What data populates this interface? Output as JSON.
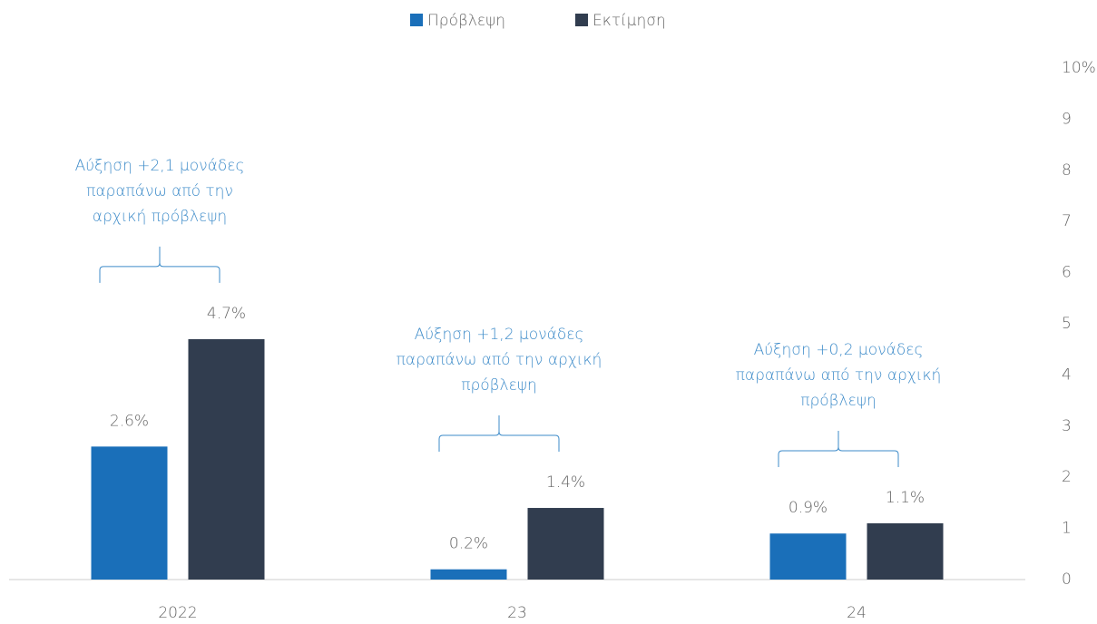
{
  "chart_data": {
    "type": "bar",
    "categories": [
      "2022",
      "23",
      "24"
    ],
    "series": [
      {
        "name": "Πρόβλεψη",
        "color": "#1a6fb9",
        "values": [
          2.6,
          0.2,
          0.9
        ],
        "value_labels": [
          "2.6%",
          "0.2%",
          "0.9%"
        ]
      },
      {
        "name": "Εκτίμηση",
        "color": "#313d4f",
        "values": [
          4.7,
          1.4,
          1.1
        ],
        "value_labels": [
          "4.7%",
          "1.4%",
          "1.1%"
        ]
      }
    ],
    "ylim": [
      0,
      10
    ],
    "yticks": [
      0,
      1,
      2,
      3,
      4,
      5,
      6,
      7,
      8,
      9,
      {
        "value": 10,
        "label": "10%"
      }
    ],
    "annotations": [
      {
        "category": "2022",
        "lines": [
          "Αύξηση +2,1 μονάδες",
          "παραπάνω από την",
          "αρχική πρόβλεψη"
        ]
      },
      {
        "category": "23",
        "lines": [
          "Αύξηση +1,2 μονάδες",
          "παραπάνω από την αρχική",
          "πρόβλεψη"
        ]
      },
      {
        "category": "24",
        "lines": [
          "Αύξηση +0,2 μονάδες",
          "παραπάνω από την αρχική",
          "πρόβλεψη"
        ]
      }
    ]
  }
}
